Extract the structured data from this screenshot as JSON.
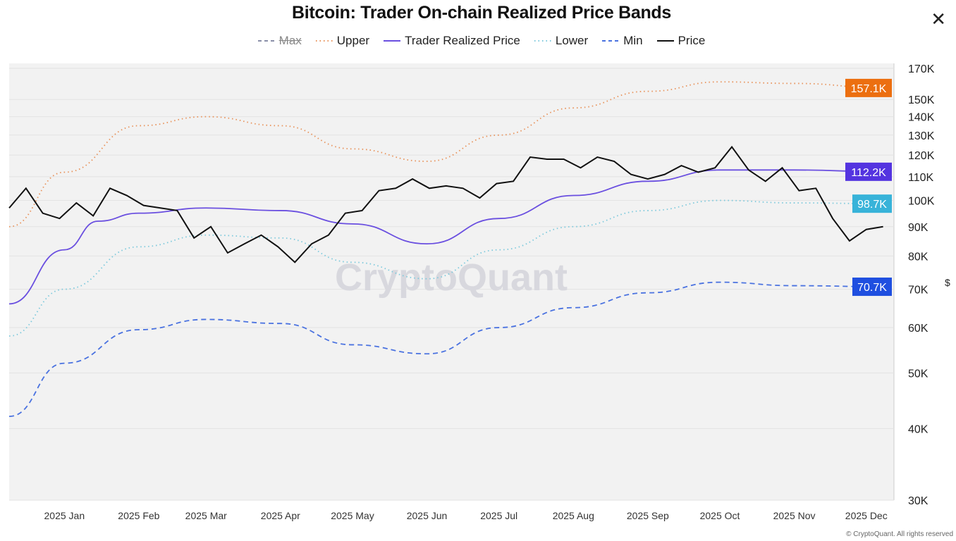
{
  "title": "Bitcoin: Trader On-chain Realized Price Bands",
  "copyright": "© CryptoQuant. All rights reserved",
  "watermark": "CryptoQuant",
  "chart_data": {
    "type": "line",
    "title": "Bitcoin: Trader On-chain Realized Price Bands",
    "y_scale": "log",
    "ylim": [
      30000,
      170000
    ],
    "xlim": [
      "2024-12-09",
      "2025-12-09"
    ],
    "grid": true,
    "legend_placement": "top-center",
    "y_ticks": [
      "170K",
      "150K",
      "140K",
      "130K",
      "120K",
      "110K",
      "100K",
      "90K",
      "80K",
      "70K",
      "60K",
      "50K",
      "40K",
      "30K"
    ],
    "y_tick_values": [
      170000,
      150000,
      140000,
      130000,
      120000,
      110000,
      100000,
      90000,
      80000,
      70000,
      60000,
      50000,
      40000,
      30000
    ],
    "x_ticks": [
      "2025 Jan",
      "2025 Feb",
      "2025 Mar",
      "2025 Apr",
      "2025 May",
      "2025 Jun",
      "2025 Jul",
      "2025 Aug",
      "2025 Sep",
      "2025 Oct",
      "2025 Nov",
      "2025 Dec"
    ],
    "x_tick_dates": [
      "2025-01-01",
      "2025-02-01",
      "2025-03-01",
      "2025-04-01",
      "2025-05-01",
      "2025-06-01",
      "2025-07-01",
      "2025-08-01",
      "2025-09-01",
      "2025-10-01",
      "2025-11-01",
      "2025-12-01"
    ],
    "series": [
      {
        "name": "Max",
        "visible": false,
        "color": "#8a8fa8",
        "style": "dashed",
        "points": []
      },
      {
        "name": "Upper",
        "visible": true,
        "color": "#e8925a",
        "style": "dotted",
        "last_label": "157.1K",
        "badge_color": "#ec6f10",
        "points": [
          [
            "2024-12-09",
            90000
          ],
          [
            "2025-01-01",
            112000
          ],
          [
            "2025-02-01",
            135000
          ],
          [
            "2025-03-01",
            140000
          ],
          [
            "2025-04-01",
            135000
          ],
          [
            "2025-05-01",
            123000
          ],
          [
            "2025-06-01",
            117000
          ],
          [
            "2025-07-01",
            130000
          ],
          [
            "2025-08-01",
            145000
          ],
          [
            "2025-09-01",
            155000
          ],
          [
            "2025-10-01",
            161000
          ],
          [
            "2025-11-01",
            160000
          ],
          [
            "2025-12-09",
            157100
          ]
        ]
      },
      {
        "name": "Trader Realized Price",
        "visible": true,
        "color": "#6a4fe0",
        "style": "solid",
        "last_label": "112.2K",
        "badge_color": "#5434e0",
        "points": [
          [
            "2024-12-09",
            66000
          ],
          [
            "2025-01-01",
            82000
          ],
          [
            "2025-01-15",
            92000
          ],
          [
            "2025-02-01",
            95000
          ],
          [
            "2025-03-01",
            97000
          ],
          [
            "2025-04-01",
            96000
          ],
          [
            "2025-05-01",
            91000
          ],
          [
            "2025-06-01",
            84000
          ],
          [
            "2025-07-01",
            93000
          ],
          [
            "2025-08-01",
            102000
          ],
          [
            "2025-09-01",
            108000
          ],
          [
            "2025-10-01",
            113000
          ],
          [
            "2025-11-01",
            113000
          ],
          [
            "2025-12-09",
            112200
          ]
        ]
      },
      {
        "name": "Lower",
        "visible": true,
        "color": "#7cc9dc",
        "style": "dotted",
        "last_label": "98.7K",
        "badge_color": "#38b3d9",
        "points": [
          [
            "2024-12-09",
            58000
          ],
          [
            "2025-01-01",
            70000
          ],
          [
            "2025-02-01",
            83000
          ],
          [
            "2025-03-01",
            87000
          ],
          [
            "2025-04-01",
            86000
          ],
          [
            "2025-05-01",
            78000
          ],
          [
            "2025-06-01",
            73000
          ],
          [
            "2025-07-01",
            82000
          ],
          [
            "2025-08-01",
            90000
          ],
          [
            "2025-09-01",
            96000
          ],
          [
            "2025-10-01",
            100000
          ],
          [
            "2025-11-01",
            99000
          ],
          [
            "2025-12-09",
            98700
          ]
        ]
      },
      {
        "name": "Min",
        "visible": true,
        "color": "#4a72e0",
        "style": "dashed",
        "last_label": "70.7K",
        "badge_color": "#1f4fe0",
        "points": [
          [
            "2024-12-09",
            42000
          ],
          [
            "2025-01-01",
            52000
          ],
          [
            "2025-02-01",
            59500
          ],
          [
            "2025-03-01",
            62000
          ],
          [
            "2025-04-01",
            61000
          ],
          [
            "2025-05-01",
            56000
          ],
          [
            "2025-06-01",
            54000
          ],
          [
            "2025-07-01",
            60000
          ],
          [
            "2025-08-01",
            65000
          ],
          [
            "2025-09-01",
            69000
          ],
          [
            "2025-10-01",
            72000
          ],
          [
            "2025-11-01",
            71000
          ],
          [
            "2025-12-09",
            70700
          ]
        ]
      },
      {
        "name": "Price",
        "visible": true,
        "color": "#111111",
        "style": "solid",
        "points": [
          [
            "2024-12-09",
            97000
          ],
          [
            "2024-12-16",
            105000
          ],
          [
            "2024-12-23",
            95000
          ],
          [
            "2024-12-30",
            93000
          ],
          [
            "2025-01-06",
            99000
          ],
          [
            "2025-01-13",
            94000
          ],
          [
            "2025-01-20",
            105000
          ],
          [
            "2025-01-27",
            102000
          ],
          [
            "2025-02-03",
            98000
          ],
          [
            "2025-02-10",
            97000
          ],
          [
            "2025-02-17",
            96000
          ],
          [
            "2025-02-24",
            86000
          ],
          [
            "2025-03-03",
            90000
          ],
          [
            "2025-03-10",
            81000
          ],
          [
            "2025-03-17",
            84000
          ],
          [
            "2025-03-24",
            87000
          ],
          [
            "2025-03-31",
            83000
          ],
          [
            "2025-04-07",
            78000
          ],
          [
            "2025-04-14",
            84000
          ],
          [
            "2025-04-21",
            87000
          ],
          [
            "2025-04-28",
            95000
          ],
          [
            "2025-05-05",
            96000
          ],
          [
            "2025-05-12",
            104000
          ],
          [
            "2025-05-19",
            105000
          ],
          [
            "2025-05-26",
            109000
          ],
          [
            "2025-06-02",
            105000
          ],
          [
            "2025-06-09",
            106000
          ],
          [
            "2025-06-16",
            105000
          ],
          [
            "2025-06-23",
            101000
          ],
          [
            "2025-06-30",
            107000
          ],
          [
            "2025-07-07",
            108000
          ],
          [
            "2025-07-14",
            119000
          ],
          [
            "2025-07-21",
            118000
          ],
          [
            "2025-07-28",
            118000
          ],
          [
            "2025-08-04",
            114000
          ],
          [
            "2025-08-11",
            119000
          ],
          [
            "2025-08-18",
            117000
          ],
          [
            "2025-08-25",
            111000
          ],
          [
            "2025-09-01",
            109000
          ],
          [
            "2025-09-08",
            111000
          ],
          [
            "2025-09-15",
            115000
          ],
          [
            "2025-09-22",
            112000
          ],
          [
            "2025-09-29",
            114000
          ],
          [
            "2025-10-06",
            124000
          ],
          [
            "2025-10-13",
            113000
          ],
          [
            "2025-10-20",
            108000
          ],
          [
            "2025-10-27",
            114000
          ],
          [
            "2025-11-03",
            104000
          ],
          [
            "2025-11-10",
            105000
          ],
          [
            "2025-11-17",
            93000
          ],
          [
            "2025-11-24",
            85000
          ],
          [
            "2025-12-01",
            89000
          ],
          [
            "2025-12-08",
            90000
          ]
        ]
      }
    ]
  }
}
